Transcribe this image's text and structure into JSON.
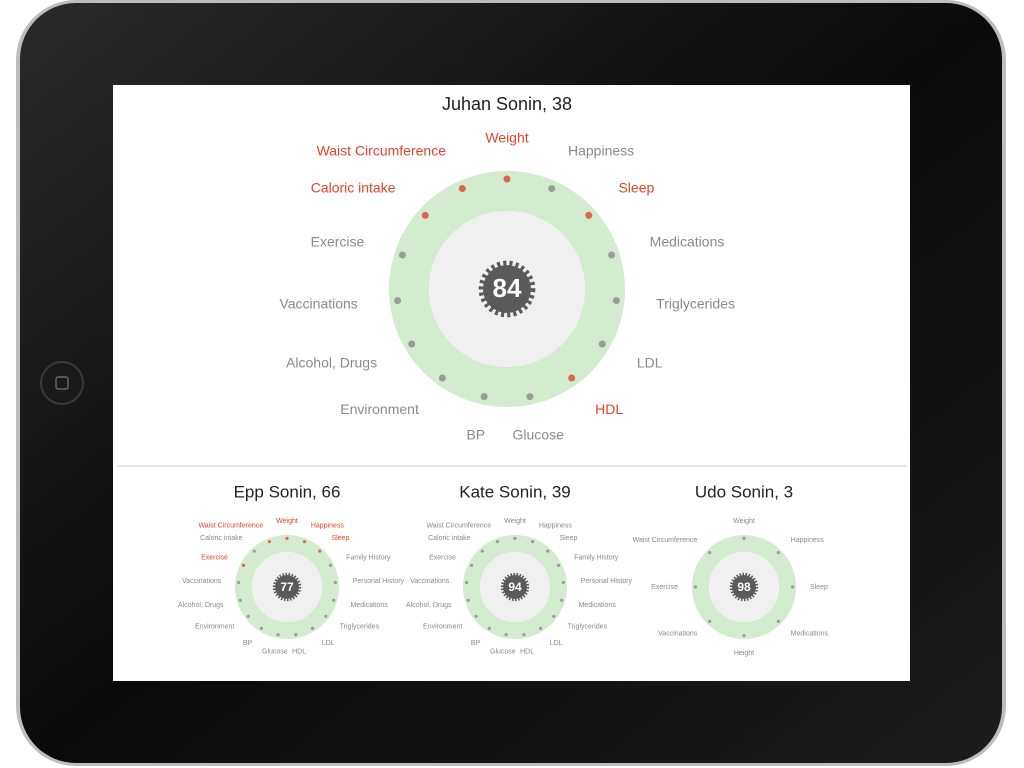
{
  "main": {
    "title": "Juhan Sonin, 38",
    "score": 84,
    "metrics": [
      {
        "label": "Weight",
        "color": "#e0452b"
      },
      {
        "label": "Happiness",
        "color": "#8a8a8a"
      },
      {
        "label": "Sleep",
        "color": "#e0452b"
      },
      {
        "label": "Medications",
        "color": "#8a8a8a"
      },
      {
        "label": "Triglycerides",
        "color": "#8a8a8a"
      },
      {
        "label": "LDL",
        "color": "#8a8a8a"
      },
      {
        "label": "HDL",
        "color": "#e0452b"
      },
      {
        "label": "Glucose",
        "color": "#8a8a8a"
      },
      {
        "label": "BP",
        "color": "#8a8a8a"
      },
      {
        "label": "Environment",
        "color": "#8a8a8a"
      },
      {
        "label": "Alcohol, Drugs",
        "color": "#8a8a8a"
      },
      {
        "label": "Vaccinations",
        "color": "#8a8a8a"
      },
      {
        "label": "Exercise",
        "color": "#8a8a8a"
      },
      {
        "label": "Caloric intake",
        "color": "#e0452b"
      },
      {
        "label": "Waist Circumference",
        "color": "#e0452b"
      }
    ]
  },
  "family": [
    {
      "title": "Epp Sonin, 66",
      "score": 77,
      "metrics": [
        {
          "label": "Weight",
          "color": "#e0452b"
        },
        {
          "label": "Happiness",
          "color": "#e0452b"
        },
        {
          "label": "Sleep",
          "color": "#e0452b"
        },
        {
          "label": "Family History",
          "color": "#8a8a8a"
        },
        {
          "label": "Personal History",
          "color": "#8a8a8a"
        },
        {
          "label": "Medications",
          "color": "#8a8a8a"
        },
        {
          "label": "Triglycerides",
          "color": "#8a8a8a"
        },
        {
          "label": "LDL",
          "color": "#8a8a8a"
        },
        {
          "label": "HDL",
          "color": "#8a8a8a"
        },
        {
          "label": "Glucose",
          "color": "#8a8a8a"
        },
        {
          "label": "BP",
          "color": "#8a8a8a"
        },
        {
          "label": "Environment",
          "color": "#8a8a8a"
        },
        {
          "label": "Alcohol, Drugs",
          "color": "#8a8a8a"
        },
        {
          "label": "Vaccinations",
          "color": "#8a8a8a"
        },
        {
          "label": "Exercise",
          "color": "#e0452b"
        },
        {
          "label": "Caloric intake",
          "color": "#8a8a8a"
        },
        {
          "label": "Waist Circumference",
          "color": "#e0452b"
        }
      ]
    },
    {
      "title": "Kate Sonin, 39",
      "score": 94,
      "metrics": [
        {
          "label": "Weight",
          "color": "#8a8a8a"
        },
        {
          "label": "Happiness",
          "color": "#8a8a8a"
        },
        {
          "label": "Sleep",
          "color": "#8a8a8a"
        },
        {
          "label": "Family History",
          "color": "#8a8a8a"
        },
        {
          "label": "Personal History",
          "color": "#8a8a8a"
        },
        {
          "label": "Medications",
          "color": "#8a8a8a"
        },
        {
          "label": "Triglycerides",
          "color": "#8a8a8a"
        },
        {
          "label": "LDL",
          "color": "#8a8a8a"
        },
        {
          "label": "HDL",
          "color": "#8a8a8a"
        },
        {
          "label": "Glucose",
          "color": "#8a8a8a"
        },
        {
          "label": "BP",
          "color": "#8a8a8a"
        },
        {
          "label": "Environment",
          "color": "#8a8a8a"
        },
        {
          "label": "Alcohol, Drugs",
          "color": "#8a8a8a"
        },
        {
          "label": "Vaccinations",
          "color": "#8a8a8a"
        },
        {
          "label": "Exercise",
          "color": "#8a8a8a"
        },
        {
          "label": "Caloric intake",
          "color": "#8a8a8a"
        },
        {
          "label": "Waist Circumference",
          "color": "#8a8a8a"
        }
      ]
    },
    {
      "title": "Udo Sonin, 3",
      "score": 98,
      "metrics": [
        {
          "label": "Weight",
          "color": "#8a8a8a"
        },
        {
          "label": "Happiness",
          "color": "#8a8a8a"
        },
        {
          "label": "Sleep",
          "color": "#8a8a8a"
        },
        {
          "label": "Medications",
          "color": "#8a8a8a"
        },
        {
          "label": "Height",
          "color": "#8a8a8a"
        },
        {
          "label": "Vaccinations",
          "color": "#8a8a8a"
        },
        {
          "label": "Exercise",
          "color": "#8a8a8a"
        },
        {
          "label": "Waist Circumference",
          "color": "#8a8a8a"
        }
      ]
    }
  ]
}
